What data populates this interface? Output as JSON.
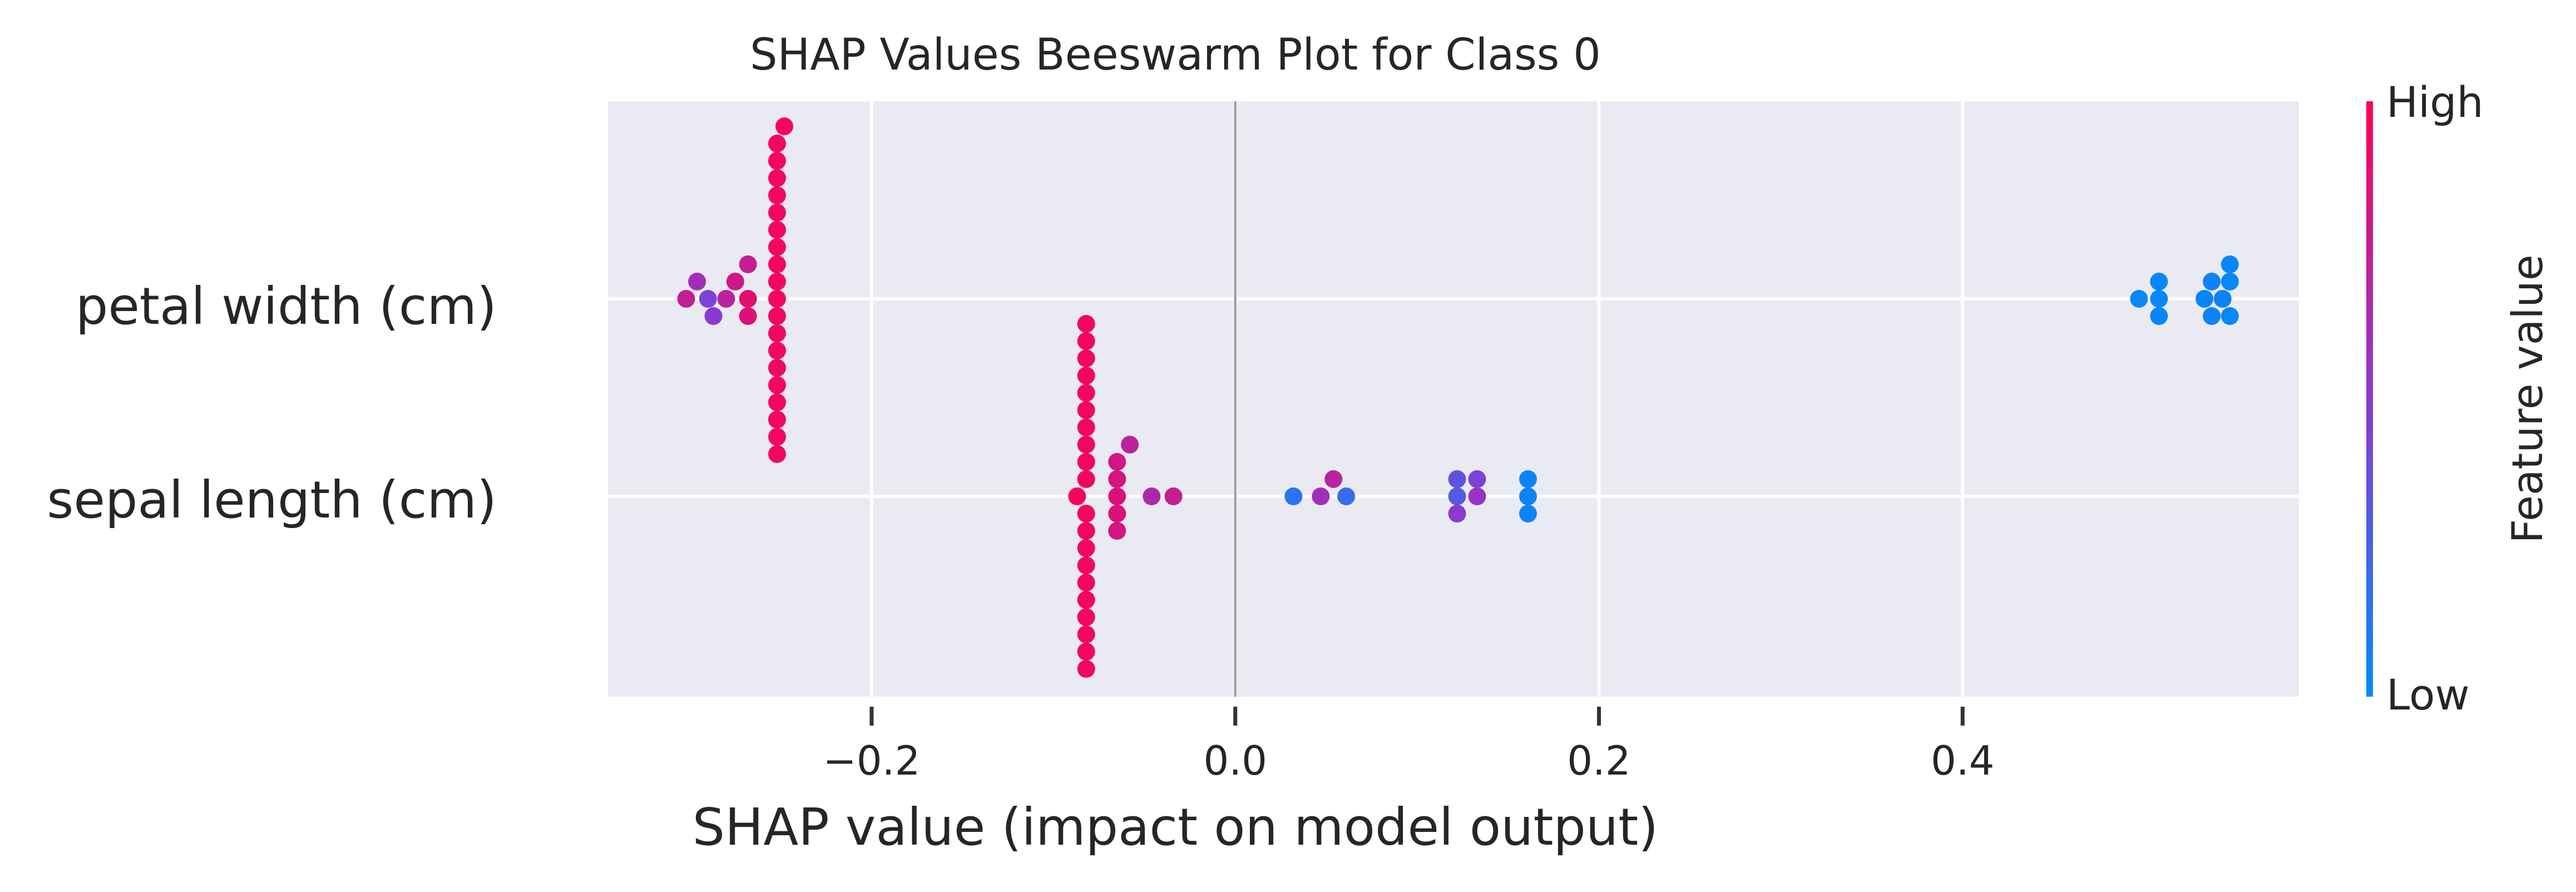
{
  "chart_data": {
    "type": "scatter",
    "subtype": "shap-beeswarm",
    "title": "SHAP Values Beeswarm Plot for Class 0",
    "xlabel": "SHAP value (impact on model output)",
    "xlim": [
      -0.345,
      0.585
    ],
    "xticks": [
      -0.2,
      0.0,
      0.2,
      0.4
    ],
    "xtick_labels": [
      "−0.2",
      "0.0",
      "0.2",
      "0.4"
    ],
    "grid": true,
    "zero_line": true,
    "features": [
      "petal width (cm)",
      "sepal length (cm)"
    ],
    "colorbar": {
      "label": "Feature value",
      "high_label": "High",
      "low_label": "Low",
      "high_color": "#ff0052",
      "low_color": "#008bfb"
    },
    "series": [
      {
        "feature": "petal width (cm)",
        "points": [
          {
            "x": -0.252,
            "v": 0.95
          },
          {
            "x": -0.252,
            "v": 0.95
          },
          {
            "x": -0.252,
            "v": 0.95
          },
          {
            "x": -0.252,
            "v": 0.95
          },
          {
            "x": -0.252,
            "v": 0.93
          },
          {
            "x": -0.252,
            "v": 0.95
          },
          {
            "x": -0.252,
            "v": 0.95
          },
          {
            "x": -0.252,
            "v": 0.95
          },
          {
            "x": -0.252,
            "v": 0.92
          },
          {
            "x": -0.252,
            "v": 0.95
          },
          {
            "x": -0.252,
            "v": 0.95
          },
          {
            "x": -0.252,
            "v": 0.95
          },
          {
            "x": -0.252,
            "v": 0.95
          },
          {
            "x": -0.252,
            "v": 0.95
          },
          {
            "x": -0.252,
            "v": 0.95
          },
          {
            "x": -0.252,
            "v": 0.95
          },
          {
            "x": -0.252,
            "v": 0.95
          },
          {
            "x": -0.252,
            "v": 0.95
          },
          {
            "x": -0.252,
            "v": 0.95
          },
          {
            "x": -0.248,
            "v": 0.95
          },
          {
            "x": -0.268,
            "v": 0.88
          },
          {
            "x": -0.268,
            "v": 0.85
          },
          {
            "x": -0.268,
            "v": 0.75
          },
          {
            "x": -0.275,
            "v": 0.8
          },
          {
            "x": -0.28,
            "v": 0.7
          },
          {
            "x": -0.287,
            "v": 0.5
          },
          {
            "x": -0.29,
            "v": 0.45
          },
          {
            "x": -0.296,
            "v": 0.6
          },
          {
            "x": -0.302,
            "v": 0.75
          },
          {
            "x": 0.497,
            "v": 0.02
          },
          {
            "x": 0.508,
            "v": 0.02
          },
          {
            "x": 0.508,
            "v": 0.03
          },
          {
            "x": 0.508,
            "v": 0.03
          },
          {
            "x": 0.533,
            "v": 0.03
          },
          {
            "x": 0.537,
            "v": 0.05
          },
          {
            "x": 0.537,
            "v": 0.05
          },
          {
            "x": 0.543,
            "v": 0.05
          },
          {
            "x": 0.547,
            "v": 0.02
          },
          {
            "x": 0.547,
            "v": 0.02
          },
          {
            "x": 0.547,
            "v": 0.03
          }
        ]
      },
      {
        "feature": "sepal length (cm)",
        "points": [
          {
            "x": -0.082,
            "v": 0.95
          },
          {
            "x": -0.082,
            "v": 0.95
          },
          {
            "x": -0.082,
            "v": 0.95
          },
          {
            "x": -0.082,
            "v": 0.95
          },
          {
            "x": -0.082,
            "v": 0.95
          },
          {
            "x": -0.082,
            "v": 0.95
          },
          {
            "x": -0.082,
            "v": 0.95
          },
          {
            "x": -0.082,
            "v": 0.95
          },
          {
            "x": -0.082,
            "v": 0.95
          },
          {
            "x": -0.082,
            "v": 0.95
          },
          {
            "x": -0.082,
            "v": 0.95
          },
          {
            "x": -0.082,
            "v": 0.95
          },
          {
            "x": -0.082,
            "v": 0.95
          },
          {
            "x": -0.082,
            "v": 0.95
          },
          {
            "x": -0.082,
            "v": 0.95
          },
          {
            "x": -0.082,
            "v": 0.95
          },
          {
            "x": -0.082,
            "v": 0.95
          },
          {
            "x": -0.082,
            "v": 0.95
          },
          {
            "x": -0.082,
            "v": 0.95
          },
          {
            "x": -0.082,
            "v": 0.95
          },
          {
            "x": -0.087,
            "v": 0.97
          },
          {
            "x": -0.065,
            "v": 0.85
          },
          {
            "x": -0.065,
            "v": 0.82
          },
          {
            "x": -0.065,
            "v": 0.85
          },
          {
            "x": -0.065,
            "v": 0.8
          },
          {
            "x": -0.065,
            "v": 0.82
          },
          {
            "x": -0.058,
            "v": 0.7
          },
          {
            "x": -0.046,
            "v": 0.65
          },
          {
            "x": -0.034,
            "v": 0.75
          },
          {
            "x": 0.032,
            "v": 0.15
          },
          {
            "x": 0.047,
            "v": 0.6
          },
          {
            "x": 0.054,
            "v": 0.7
          },
          {
            "x": 0.061,
            "v": 0.2
          },
          {
            "x": 0.122,
            "v": 0.3
          },
          {
            "x": 0.122,
            "v": 0.35
          },
          {
            "x": 0.122,
            "v": 0.5
          },
          {
            "x": 0.133,
            "v": 0.55
          },
          {
            "x": 0.133,
            "v": 0.45
          },
          {
            "x": 0.161,
            "v": 0.05
          },
          {
            "x": 0.161,
            "v": 0.05
          },
          {
            "x": 0.161,
            "v": 0.05
          }
        ]
      }
    ]
  }
}
